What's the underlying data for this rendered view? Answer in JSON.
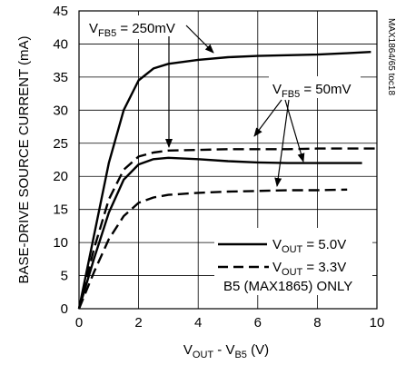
{
  "chart_data": {
    "type": "line",
    "xlabel": {
      "main": "V",
      "sub1": "OUT",
      "mid": " - V",
      "sub2": "B5",
      "end": " (V)"
    },
    "ylabel": "BASE-DRIVE SOURCE CURRENT (mA)",
    "xlim": [
      0,
      10
    ],
    "ylim": [
      0,
      45
    ],
    "xticks": [
      0,
      2,
      4,
      6,
      8,
      10
    ],
    "yticks": [
      0,
      5,
      10,
      15,
      20,
      25,
      30,
      35,
      40,
      45
    ],
    "grid": true,
    "series": [
      {
        "vout": "5.0V",
        "vfb5": "250mV",
        "style": "solid",
        "x": [
          0,
          0.5,
          1,
          1.5,
          2,
          2.5,
          3,
          4,
          5,
          6,
          7,
          8,
          9,
          9.8
        ],
        "y": [
          0,
          11,
          22,
          30,
          34.5,
          36.3,
          37,
          37.6,
          38,
          38.2,
          38.3,
          38.4,
          38.6,
          38.8
        ]
      },
      {
        "vout": "3.3V",
        "vfb5": "250mV",
        "style": "dashed",
        "x": [
          0,
          0.5,
          1,
          1.5,
          2,
          2.5,
          3,
          4,
          5,
          6,
          7,
          8,
          9,
          10
        ],
        "y": [
          0,
          9,
          16.5,
          21,
          23,
          23.6,
          23.9,
          24,
          24.1,
          24.1,
          24.1,
          24.2,
          24.2,
          24.2
        ]
      },
      {
        "vout": "5.0V",
        "vfb5": "50mV",
        "style": "solid",
        "x": [
          0,
          0.5,
          1,
          1.5,
          2,
          2.5,
          3,
          4,
          5,
          6,
          7,
          8,
          9.5
        ],
        "y": [
          0,
          7.5,
          14.5,
          19.5,
          21.8,
          22.6,
          22.8,
          22.6,
          22.3,
          22.1,
          22,
          22,
          22
        ]
      },
      {
        "vout": "3.3V",
        "vfb5": "50mV",
        "style": "dashed",
        "x": [
          0,
          0.5,
          1,
          1.5,
          2,
          2.5,
          3,
          4,
          5,
          6,
          7,
          8,
          9
        ],
        "y": [
          0,
          5.5,
          10.5,
          14,
          16,
          16.8,
          17.2,
          17.5,
          17.7,
          17.8,
          17.9,
          17.9,
          18
        ]
      }
    ],
    "annotations": {
      "vfb5_250": {
        "main": "V",
        "sub": "FB5",
        "value": " = 250mV"
      },
      "vfb5_50": {
        "main": "V",
        "sub": "FB5",
        "value": " = 50mV"
      }
    },
    "legend": {
      "placement": "bottom-right",
      "entries": [
        {
          "main": "V",
          "sub": "OUT",
          "value": " = 5.0V",
          "style": "solid"
        },
        {
          "main": "V",
          "sub": "OUT",
          "value": " = 3.3V",
          "style": "dashed"
        }
      ],
      "note": "B5 (MAX1865) ONLY"
    },
    "side_note": "MAX1864/65 toc18"
  }
}
